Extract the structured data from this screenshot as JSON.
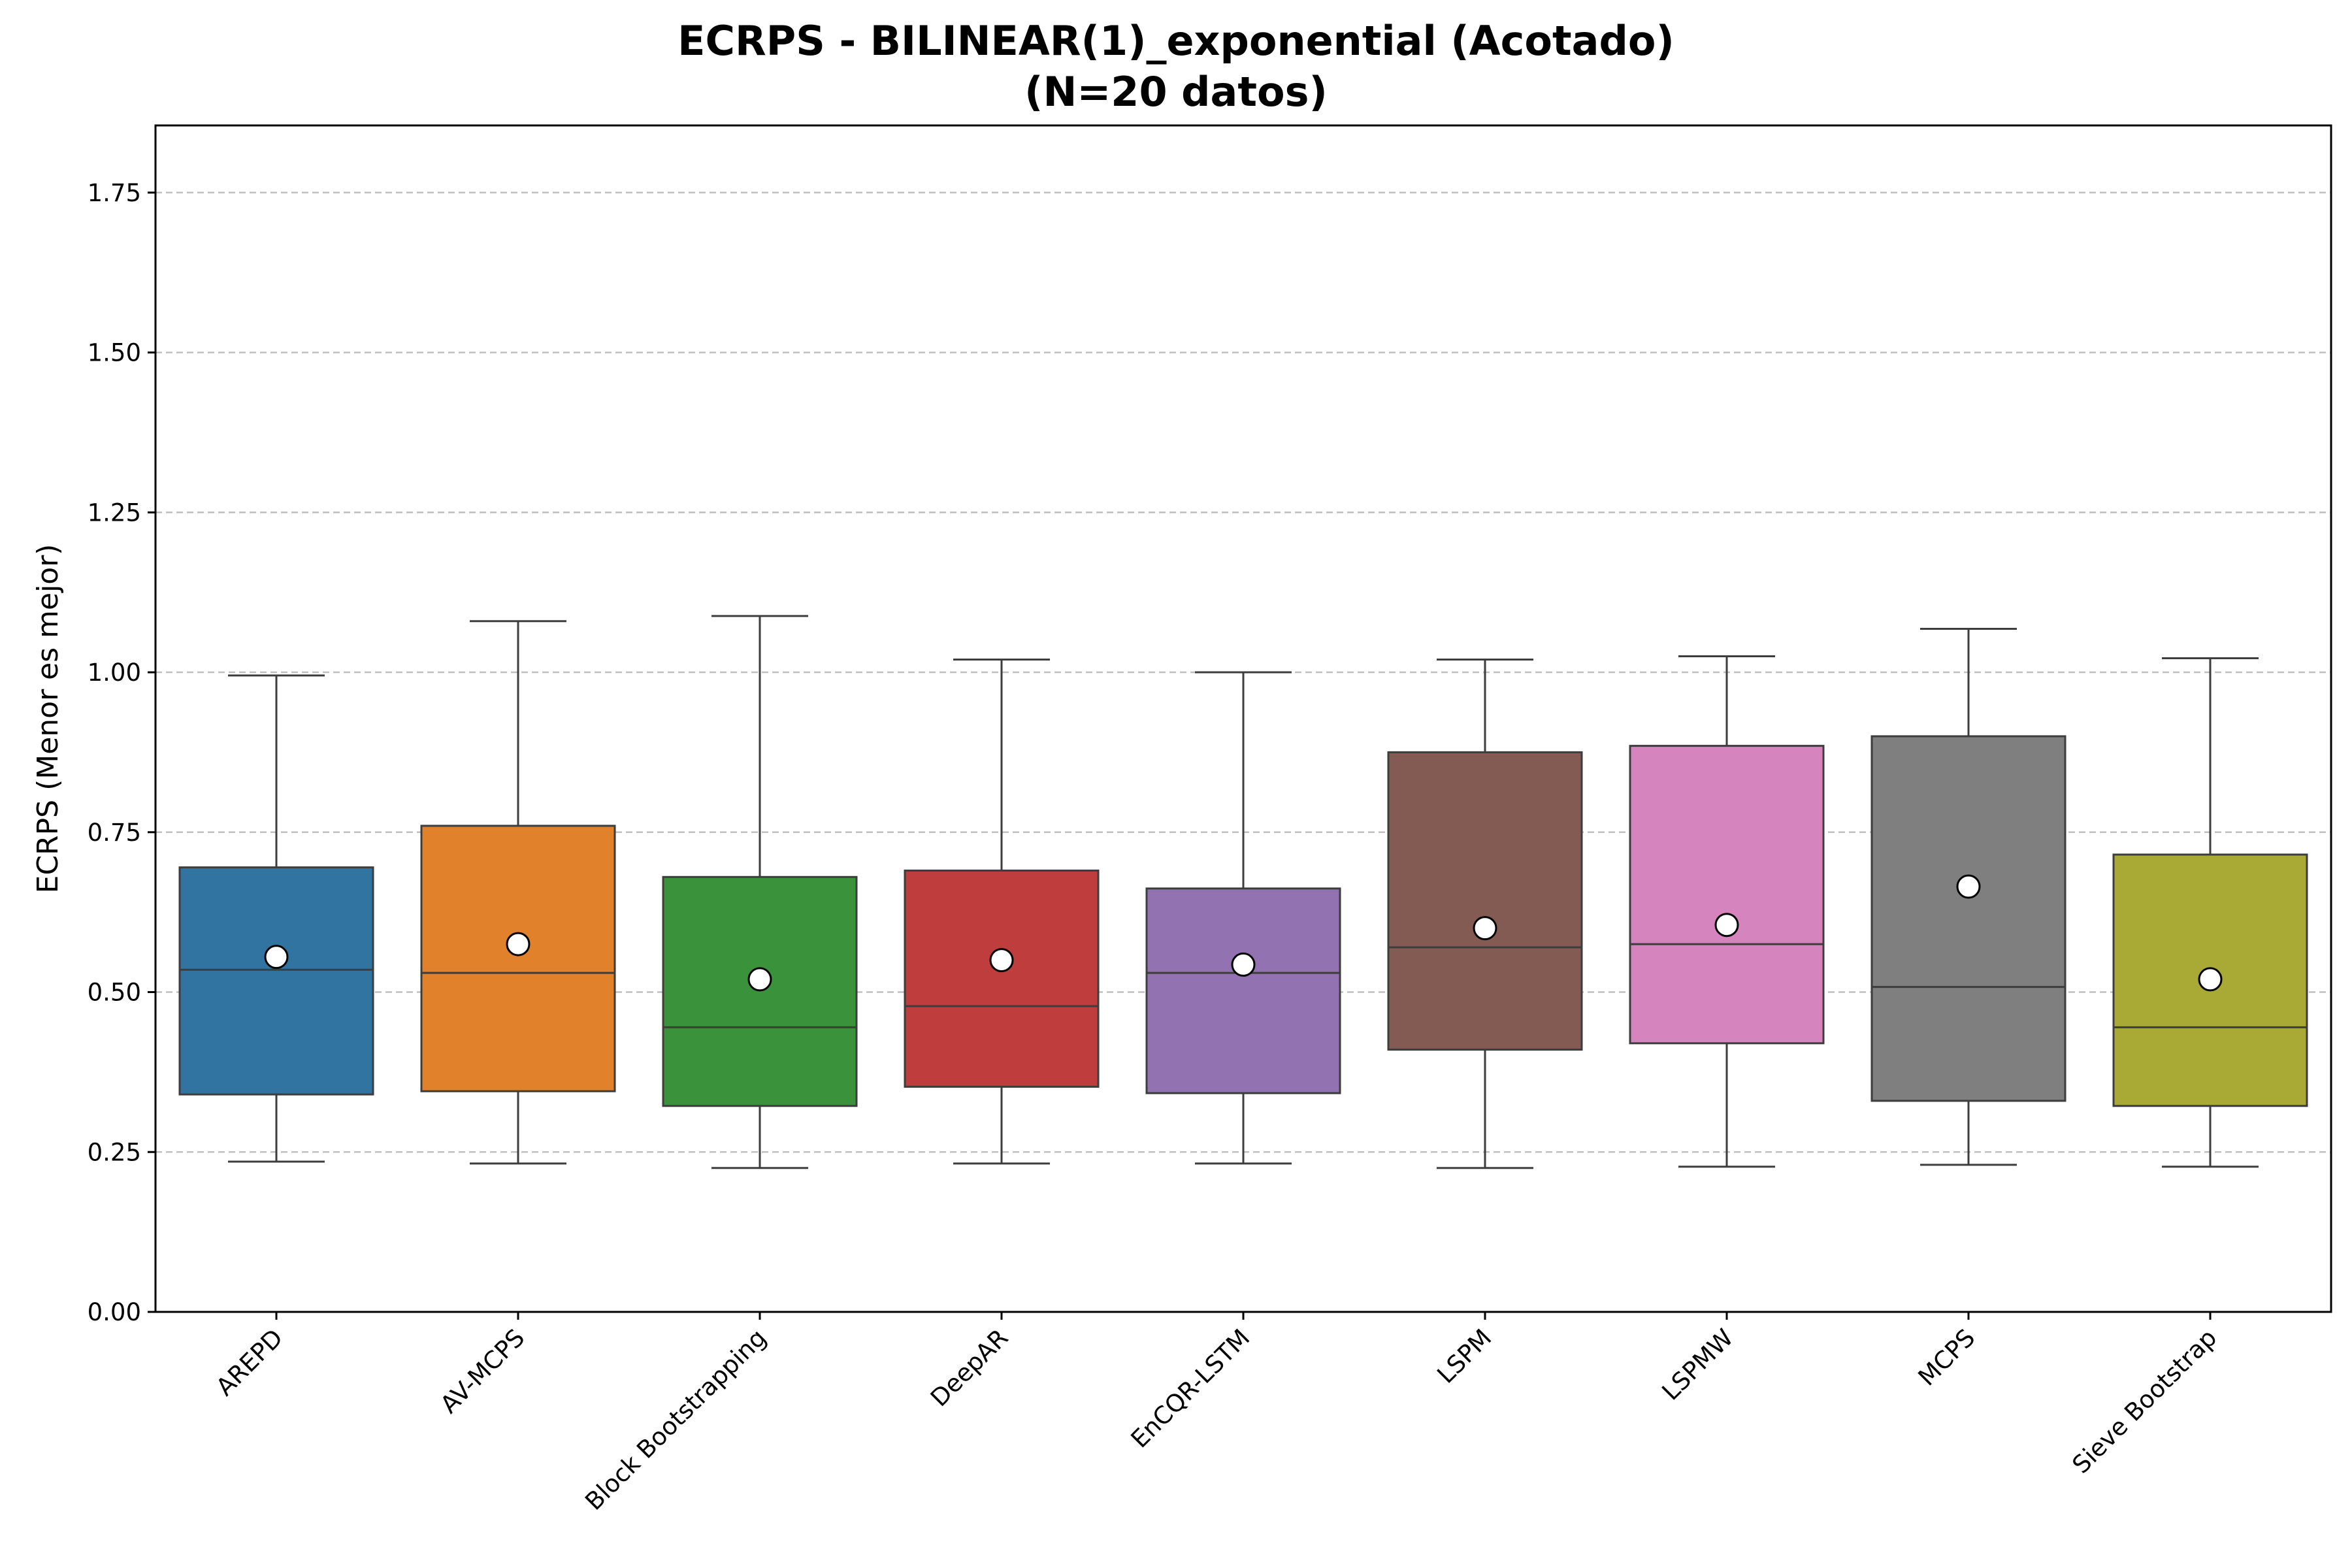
{
  "chart_data": {
    "type": "box",
    "title": "ECRPS - BILINEAR(1)_exponential (Acotado)",
    "subtitle": "(N=20 datos)",
    "xlabel": "",
    "ylabel": "ECRPS (Menor es mejor)",
    "ylim": [
      0,
      1.855
    ],
    "yticks": [
      "0.00",
      "0.25",
      "0.50",
      "0.75",
      "1.00",
      "1.25",
      "1.50",
      "1.75"
    ],
    "grid": "y-dashed",
    "mean_marker": "white circle",
    "categories": [
      "AREPD",
      "AV-MCPS",
      "Block Bootstrapping",
      "DeepAR",
      "EnCQR-LSTM",
      "LSPM",
      "LSPMW",
      "MCPS",
      "Sieve Bootstrap"
    ],
    "series": [
      {
        "category": "AREPD",
        "color": "#3274a1",
        "whisker_low": 0.235,
        "q1": 0.34,
        "median": 0.535,
        "q3": 0.695,
        "whisker_high": 0.995,
        "mean": 0.555
      },
      {
        "category": "AV-MCPS",
        "color": "#e1812c",
        "whisker_low": 0.232,
        "q1": 0.345,
        "median": 0.53,
        "q3": 0.76,
        "whisker_high": 1.08,
        "mean": 0.575
      },
      {
        "category": "Block Bootstrapping",
        "color": "#3a923a",
        "whisker_low": 0.225,
        "q1": 0.322,
        "median": 0.445,
        "q3": 0.68,
        "whisker_high": 1.088,
        "mean": 0.52
      },
      {
        "category": "DeepAR",
        "color": "#c03d3e",
        "whisker_low": 0.232,
        "q1": 0.352,
        "median": 0.478,
        "q3": 0.69,
        "whisker_high": 1.02,
        "mean": 0.55
      },
      {
        "category": "EnCQR-LSTM",
        "color": "#9372b2",
        "whisker_low": 0.232,
        "q1": 0.342,
        "median": 0.53,
        "q3": 0.662,
        "whisker_high": 1.0,
        "mean": 0.543
      },
      {
        "category": "LSPM",
        "color": "#845b53",
        "whisker_low": 0.225,
        "q1": 0.41,
        "median": 0.57,
        "q3": 0.875,
        "whisker_high": 1.02,
        "mean": 0.6
      },
      {
        "category": "LSPMW",
        "color": "#d684bd",
        "whisker_low": 0.227,
        "q1": 0.42,
        "median": 0.575,
        "q3": 0.885,
        "whisker_high": 1.025,
        "mean": 0.605
      },
      {
        "category": "MCPS",
        "color": "#7f7f7f",
        "whisker_low": 0.23,
        "q1": 0.33,
        "median": 0.508,
        "q3": 0.9,
        "whisker_high": 1.068,
        "mean": 0.665
      },
      {
        "category": "Sieve Bootstrap",
        "color": "#a9aa35",
        "whisker_low": 0.227,
        "q1": 0.322,
        "median": 0.445,
        "q3": 0.715,
        "whisker_high": 1.022,
        "mean": 0.52
      }
    ]
  }
}
